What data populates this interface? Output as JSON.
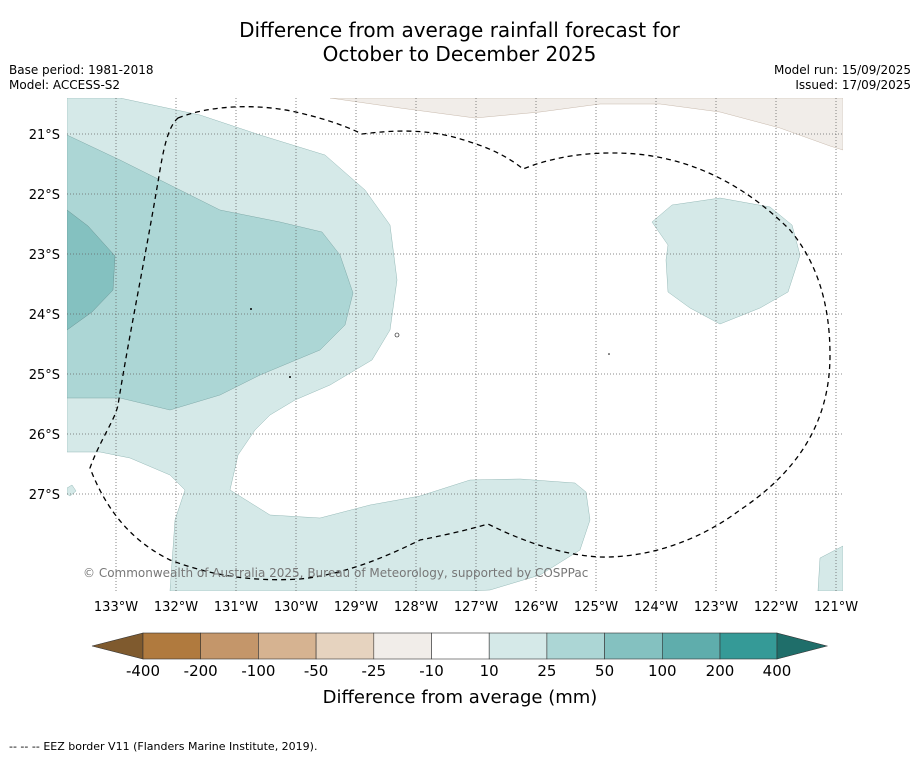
{
  "title": {
    "line1": "Difference from average rainfall forecast for",
    "line2": "October to December 2025"
  },
  "info_left": {
    "base_period": "Base period: 1981-2018",
    "model": "Model: ACCESS-S2"
  },
  "info_right": {
    "model_run": "Model run: 15/09/2025",
    "issued": "Issued: 17/09/2025"
  },
  "map": {
    "lat_labels": [
      "21°S",
      "22°S",
      "23°S",
      "24°S",
      "25°S",
      "26°S",
      "27°S"
    ],
    "lon_labels": [
      "133°W",
      "132°W",
      "131°W",
      "130°W",
      "129°W",
      "128°W",
      "127°W",
      "126°W",
      "125°W",
      "124°W",
      "123°W",
      "122°W",
      "121°W"
    ],
    "copyright": "© Commonwealth of Australia 2025, Bureau of Meteorology, supported by COSPPac",
    "grid": true
  },
  "colorbar": {
    "tick_labels": [
      "-400",
      "-200",
      "-100",
      "-50",
      "-25",
      "-10",
      "10",
      "25",
      "50",
      "100",
      "200",
      "400"
    ],
    "colors": [
      "#7f5a2e",
      "#b07a3e",
      "#c4966a",
      "#d6b391",
      "#e6d3bf",
      "#f1ede9",
      "#ffffff",
      "#d5e9e8",
      "#acd6d5",
      "#84c1c0",
      "#5fadac",
      "#359a97",
      "#1f6e6a"
    ],
    "label": "Difference from average (mm)"
  },
  "footer": {
    "legend_symbol": "--  --  --",
    "legend_text": "EEZ border V11 (Flanders Marine Institute, 2019)."
  }
}
